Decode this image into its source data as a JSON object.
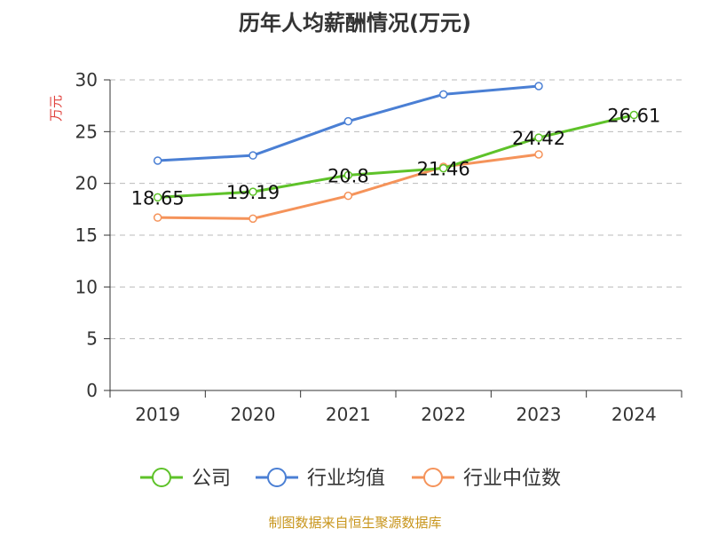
{
  "chart_data": {
    "type": "line",
    "title": "历年人均薪酬情况(万元)",
    "ylabel": "万元",
    "xlabel": "",
    "categories": [
      "2019",
      "2020",
      "2021",
      "2022",
      "2023",
      "2024"
    ],
    "ylim": [
      0,
      30
    ],
    "yticks": [
      0,
      5,
      10,
      15,
      20,
      25,
      30
    ],
    "grid": true,
    "legend_position": "bottom",
    "series": [
      {
        "name": "公司",
        "color": "#5ec229",
        "values": [
          18.65,
          19.19,
          20.8,
          21.46,
          24.42,
          26.61
        ],
        "labels": [
          "18.65",
          "19.19",
          "20.8",
          "21.46",
          "24.42",
          "26.61"
        ]
      },
      {
        "name": "行业均值",
        "color": "#4a7fd4",
        "values": [
          22.2,
          22.7,
          26.0,
          28.6,
          29.4,
          null
        ],
        "labels": []
      },
      {
        "name": "行业中位数",
        "color": "#f5935a",
        "values": [
          16.7,
          16.6,
          18.8,
          21.6,
          22.8,
          null
        ],
        "labels": []
      }
    ]
  },
  "source_text": "制图数据来自恒生聚源数据库",
  "colors": {
    "title": "#333333",
    "ylabel": "#e0413c",
    "axis": "#333333",
    "grid": "#bbbbbb",
    "source": "#c8951b"
  }
}
